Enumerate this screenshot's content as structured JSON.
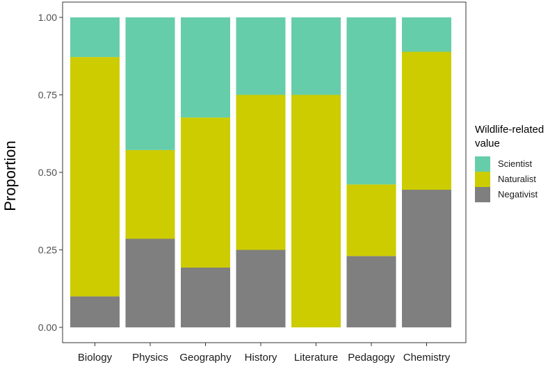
{
  "chart_data": {
    "type": "bar",
    "stacked": true,
    "title": "",
    "xlabel": "",
    "ylabel": "Proportion",
    "ylim": [
      0,
      1
    ],
    "yticks": [
      0,
      0.25,
      0.5,
      0.75,
      1
    ],
    "ytick_labels": [
      "0.00",
      "0.25",
      "0.50",
      "0.75",
      "1.00"
    ],
    "categories": [
      "Biology",
      "Physics",
      "Geography",
      "History",
      "Literature",
      "Pedagogy",
      "Chemistry"
    ],
    "series": [
      {
        "name": "Negativist",
        "color": "#7f7f7f",
        "values": [
          0.1,
          0.286,
          0.193,
          0.25,
          0.0,
          0.23,
          0.444
        ]
      },
      {
        "name": "Naturalist",
        "color": "#cccc00",
        "values": [
          0.772,
          0.286,
          0.484,
          0.5,
          0.75,
          0.231,
          0.445
        ]
      },
      {
        "name": "Scientist",
        "color": "#66cdaa",
        "values": [
          0.128,
          0.428,
          0.323,
          0.25,
          0.25,
          0.539,
          0.111
        ]
      }
    ],
    "legend": {
      "title_line1": "Wildlife-related",
      "title_line2": "value",
      "placement": "right",
      "entries": [
        {
          "label": "Scientist",
          "color": "#66cdaa"
        },
        {
          "label": "Naturalist",
          "color": "#cccc00"
        },
        {
          "label": "Negativist",
          "color": "#7f7f7f"
        }
      ]
    },
    "grid": false
  }
}
